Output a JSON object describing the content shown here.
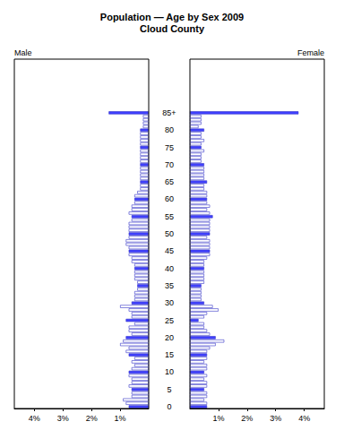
{
  "chart_data": {
    "type": "bar",
    "orientation": "horizontal",
    "title": "Population — Age by Sex 2009",
    "subtitle": "Cloud County",
    "categories": [
      "0",
      null,
      null,
      null,
      null,
      "5",
      null,
      null,
      null,
      null,
      "10",
      null,
      null,
      null,
      null,
      "15",
      null,
      null,
      null,
      null,
      "20",
      null,
      null,
      null,
      null,
      "25",
      null,
      null,
      null,
      null,
      "30",
      null,
      null,
      null,
      null,
      "35",
      null,
      null,
      null,
      null,
      "40",
      null,
      null,
      null,
      null,
      "45",
      null,
      null,
      null,
      null,
      "50",
      null,
      null,
      null,
      null,
      "55",
      null,
      null,
      null,
      null,
      "60",
      null,
      null,
      null,
      null,
      "65",
      null,
      null,
      null,
      null,
      "70",
      null,
      null,
      null,
      null,
      "75",
      null,
      null,
      null,
      null,
      "80",
      null,
      null,
      null,
      null,
      "85+"
    ],
    "xlim": [
      0,
      4.7
    ],
    "xticks": [
      {
        "value": 1,
        "label": "1%"
      },
      {
        "value": 2,
        "label": "2%"
      },
      {
        "value": 3,
        "label": "3%"
      },
      {
        "value": 4,
        "label": "4%"
      }
    ],
    "grid": false,
    "series": [
      {
        "name": "Male",
        "values": [
          0.7,
          0.8,
          0.9,
          0.6,
          0.6,
          0.6,
          0.7,
          0.6,
          0.6,
          0.7,
          0.7,
          0.6,
          0.5,
          0.6,
          0.5,
          0.7,
          0.8,
          0.7,
          1.0,
          0.9,
          0.8,
          0.6,
          0.7,
          0.7,
          0.5,
          0.8,
          0.6,
          0.6,
          0.7,
          1.0,
          0.6,
          0.5,
          0.5,
          0.5,
          0.4,
          0.4,
          0.4,
          0.5,
          0.5,
          0.5,
          0.5,
          0.5,
          0.6,
          0.6,
          0.7,
          0.7,
          0.7,
          0.8,
          0.8,
          0.7,
          0.7,
          0.7,
          0.7,
          0.7,
          0.6,
          0.6,
          0.7,
          0.6,
          0.6,
          0.5,
          0.5,
          0.5,
          0.4,
          0.3,
          0.3,
          0.3,
          0.3,
          0.3,
          0.3,
          0.3,
          0.3,
          0.3,
          0.3,
          0.3,
          0.3,
          0.3,
          0.3,
          0.3,
          0.3,
          0.3,
          0.3,
          0.2,
          0.2,
          0.2,
          0.2,
          1.4
        ],
        "colors": [
          "#4040ff",
          "#ffffff",
          "#ffffff",
          "#ffffff",
          "#ffffff",
          "#4040ff",
          "#ffffff",
          "#ffffff",
          "#ffffff",
          "#ffffff",
          "#4040ff",
          "#ffffff",
          "#ffffff",
          "#ffffff",
          "#ffffff",
          "#4040ff",
          "#ffffff",
          "#ffffff",
          "#ffffff",
          "#ffffff",
          "#4040ff",
          "#ffffff",
          "#ffffff",
          "#ffffff",
          "#ffffff",
          "#4040ff",
          "#ffffff",
          "#ffffff",
          "#ffffff",
          "#ffffff",
          "#4040ff",
          "#ffffff",
          "#ffffff",
          "#ffffff",
          "#ffffff",
          "#4040ff",
          "#ffffff",
          "#ffffff",
          "#ffffff",
          "#ffffff",
          "#4040ff",
          "#ffffff",
          "#ffffff",
          "#ffffff",
          "#ffffff",
          "#4040ff",
          "#ffffff",
          "#ffffff",
          "#ffffff",
          "#ffffff",
          "#4040ff",
          "#ffffff",
          "#ffffff",
          "#ffffff",
          "#ffffff",
          "#4040ff",
          "#ffffff",
          "#ffffff",
          "#ffffff",
          "#ffffff",
          "#4040ff",
          "#ffffff",
          "#ffffff",
          "#ffffff",
          "#ffffff",
          "#4040ff",
          "#ffffff",
          "#ffffff",
          "#ffffff",
          "#ffffff",
          "#4040ff",
          "#ffffff",
          "#ffffff",
          "#ffffff",
          "#ffffff",
          "#4040ff",
          "#ffffff",
          "#ffffff",
          "#ffffff",
          "#ffffff",
          "#4040ff",
          "#ffffff",
          "#ffffff",
          "#ffffff",
          "#ffffff",
          "#4040ff"
        ]
      },
      {
        "name": "Female",
        "values": [
          0.6,
          0.6,
          0.5,
          0.6,
          0.6,
          0.5,
          0.6,
          0.6,
          0.5,
          0.6,
          0.5,
          0.6,
          0.6,
          0.5,
          0.6,
          0.6,
          0.6,
          0.7,
          0.9,
          1.2,
          0.9,
          0.7,
          0.6,
          0.5,
          0.5,
          0.3,
          0.5,
          0.6,
          1.0,
          0.8,
          0.5,
          0.4,
          0.4,
          0.4,
          0.4,
          0.4,
          0.5,
          0.5,
          0.5,
          0.5,
          0.5,
          0.5,
          0.5,
          0.6,
          0.7,
          0.7,
          0.7,
          0.7,
          0.7,
          0.6,
          0.7,
          0.7,
          0.7,
          0.7,
          0.7,
          0.8,
          0.7,
          0.6,
          0.7,
          0.6,
          0.6,
          0.6,
          0.6,
          0.5,
          0.5,
          0.6,
          0.5,
          0.5,
          0.5,
          0.5,
          0.5,
          0.4,
          0.4,
          0.4,
          0.5,
          0.4,
          0.4,
          0.5,
          0.4,
          0.4,
          0.5,
          0.3,
          0.4,
          0.4,
          0.4,
          3.8
        ],
        "colors": [
          "#4040ff",
          "#ffffff",
          "#ffffff",
          "#ffffff",
          "#ffffff",
          "#4040ff",
          "#ffffff",
          "#ffffff",
          "#ffffff",
          "#ffffff",
          "#4040ff",
          "#ffffff",
          "#ffffff",
          "#ffffff",
          "#ffffff",
          "#4040ff",
          "#ffffff",
          "#ffffff",
          "#ffffff",
          "#ffffff",
          "#4040ff",
          "#ffffff",
          "#ffffff",
          "#ffffff",
          "#ffffff",
          "#4040ff",
          "#ffffff",
          "#ffffff",
          "#ffffff",
          "#ffffff",
          "#4040ff",
          "#ffffff",
          "#ffffff",
          "#ffffff",
          "#ffffff",
          "#4040ff",
          "#ffffff",
          "#ffffff",
          "#ffffff",
          "#ffffff",
          "#4040ff",
          "#ffffff",
          "#ffffff",
          "#ffffff",
          "#ffffff",
          "#4040ff",
          "#ffffff",
          "#ffffff",
          "#ffffff",
          "#ffffff",
          "#4040ff",
          "#ffffff",
          "#ffffff",
          "#ffffff",
          "#ffffff",
          "#4040ff",
          "#ffffff",
          "#ffffff",
          "#ffffff",
          "#ffffff",
          "#4040ff",
          "#ffffff",
          "#ffffff",
          "#ffffff",
          "#ffffff",
          "#4040ff",
          "#ffffff",
          "#ffffff",
          "#ffffff",
          "#ffffff",
          "#4040ff",
          "#ffffff",
          "#ffffff",
          "#ffffff",
          "#ffffff",
          "#4040ff",
          "#ffffff",
          "#ffffff",
          "#ffffff",
          "#ffffff",
          "#4040ff",
          "#ffffff",
          "#ffffff",
          "#ffffff",
          "#ffffff",
          "#4040ff"
        ]
      }
    ]
  }
}
